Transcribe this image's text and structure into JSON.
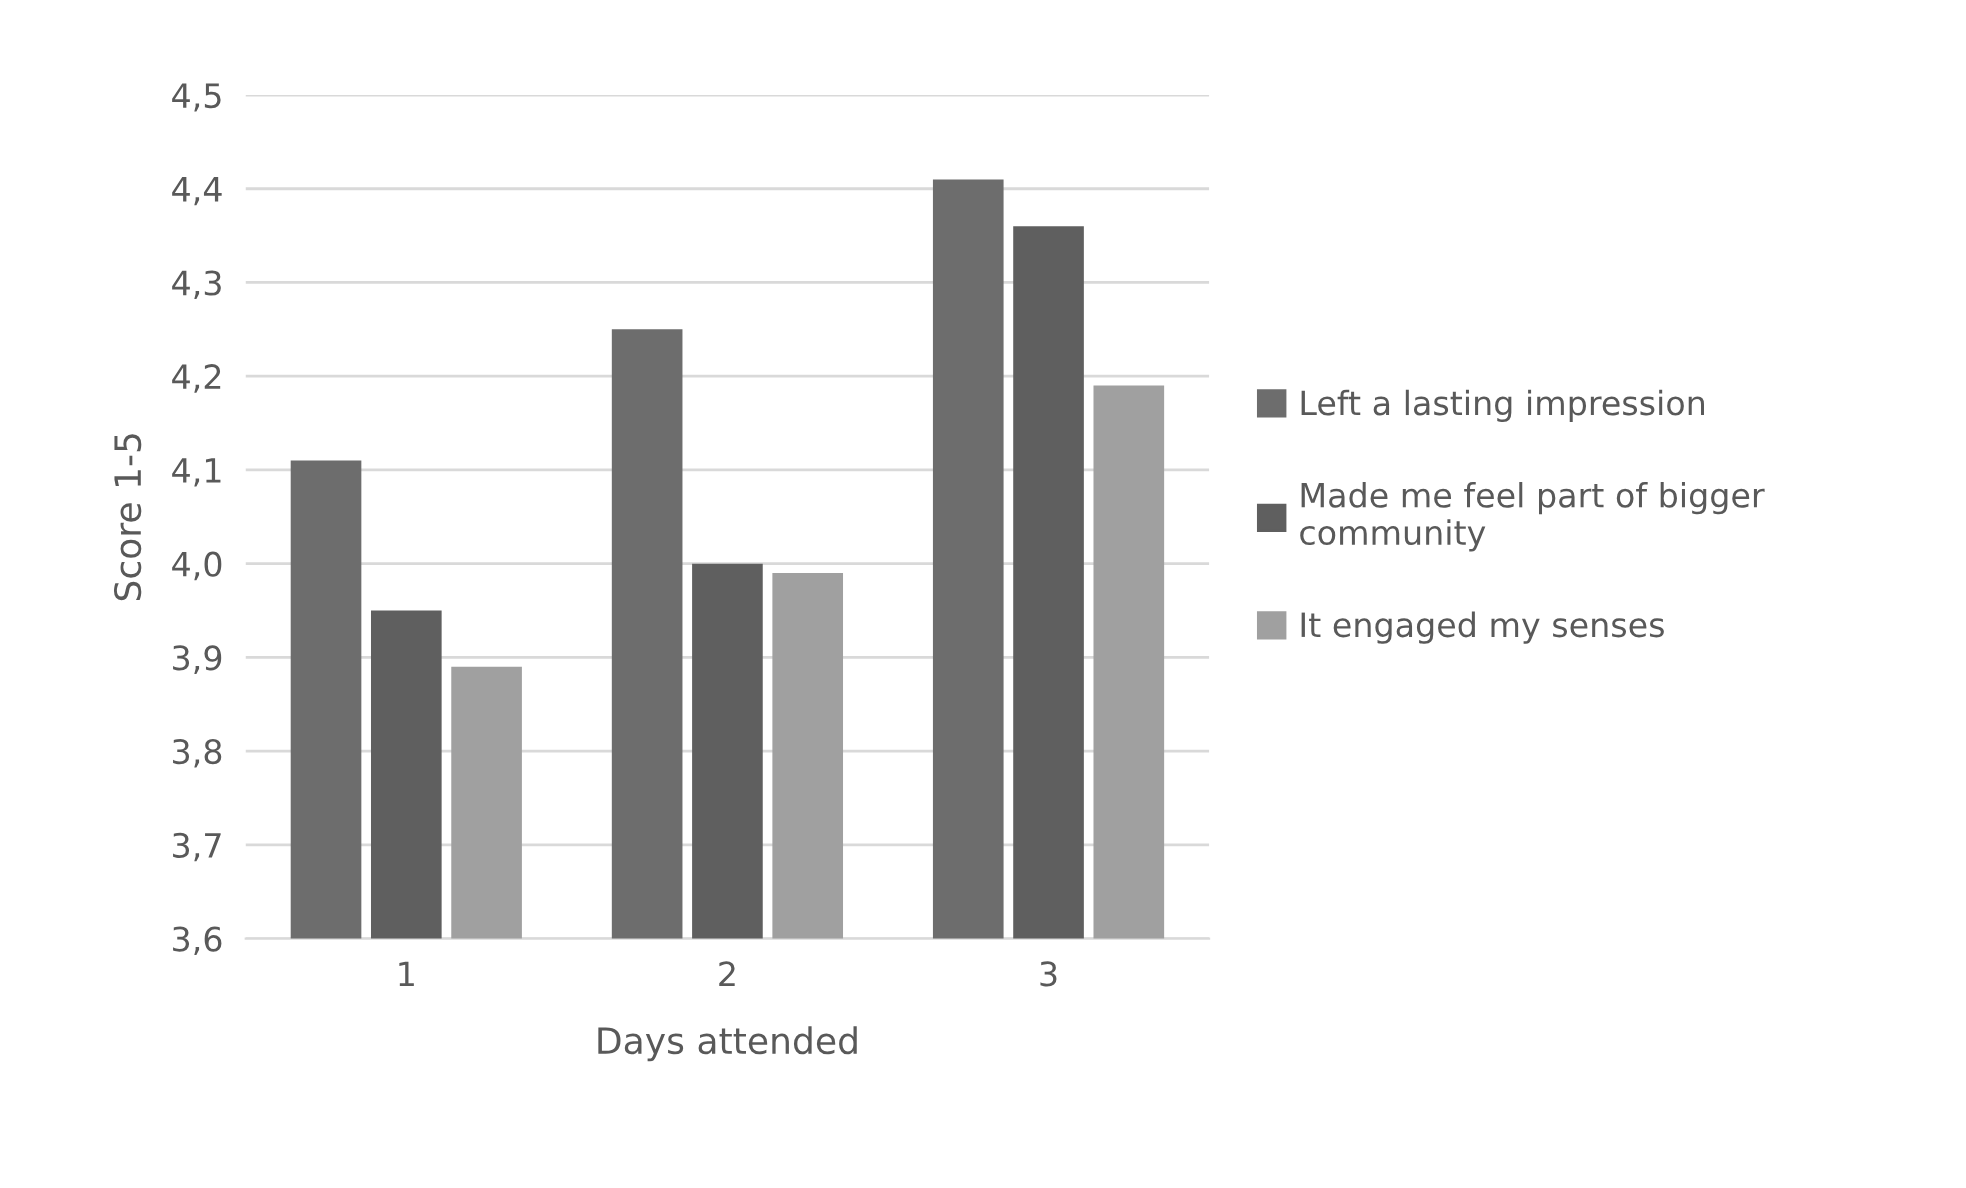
{
  "chart_data": {
    "type": "bar",
    "xlabel": "Days attended",
    "ylabel": "Score 1-5",
    "categories": [
      "1",
      "2",
      "3"
    ],
    "series": [
      {
        "name": "Left a lasting impression",
        "color": "#6d6d6d",
        "values": [
          4.11,
          4.25,
          4.41
        ]
      },
      {
        "name": "Made me feel part of bigger community",
        "color": "#5f5f5f",
        "values": [
          3.95,
          4.0,
          4.36
        ]
      },
      {
        "name": "It engaged my senses",
        "color": "#a0a0a0",
        "values": [
          3.89,
          3.99,
          4.19
        ]
      }
    ],
    "ylim": [
      3.6,
      4.5
    ],
    "yticks": [
      {
        "value": 3.6,
        "label": "3,6"
      },
      {
        "value": 3.7,
        "label": "3,7"
      },
      {
        "value": 3.8,
        "label": "3,8"
      },
      {
        "value": 3.9,
        "label": "3,9"
      },
      {
        "value": 4.0,
        "label": "4,0"
      },
      {
        "value": 4.1,
        "label": "4,1"
      },
      {
        "value": 4.2,
        "label": "4,2"
      },
      {
        "value": 4.3,
        "label": "4,3"
      },
      {
        "value": 4.4,
        "label": "4,4"
      },
      {
        "value": 4.5,
        "label": "4,5"
      }
    ],
    "grid": "y",
    "legend": "right"
  }
}
